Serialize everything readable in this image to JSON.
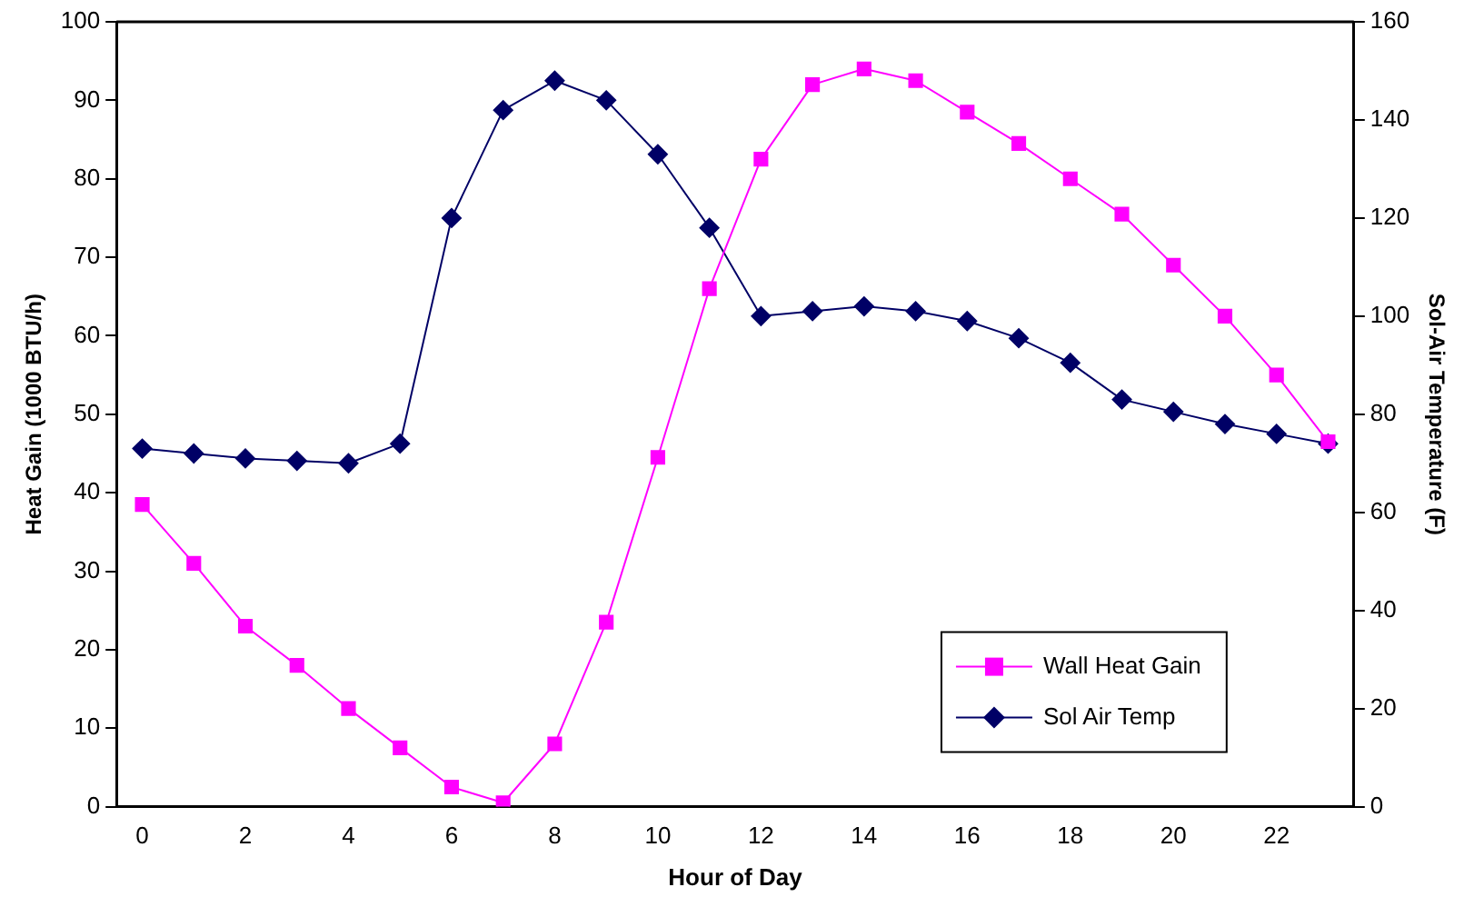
{
  "chart_data": {
    "type": "line",
    "xlabel": "Hour of Day",
    "ylabel": "Heat Gain (1000 BTU/h)",
    "y2label": "Sol-Air Temperature (F)",
    "categories": [
      "0",
      null,
      "2",
      null,
      "4",
      null,
      "6",
      null,
      "8",
      null,
      "10",
      null,
      "12",
      null,
      "14",
      null,
      "16",
      null,
      "18",
      null,
      "20",
      null,
      "22",
      null
    ],
    "series": [
      {
        "name": "Wall Heat Gain",
        "color": "#ff00ff",
        "marker": "square",
        "values": [
          38.5,
          31,
          23,
          18,
          12.5,
          7.5,
          2.5,
          0.5,
          8,
          23.5,
          44.5,
          66,
          82.5,
          92,
          94,
          92.5,
          88.5,
          84.5,
          80,
          75.5,
          69,
          62.5,
          55,
          46.5
        ]
      },
      {
        "name": "Sol Air Temp",
        "color": "#000066",
        "marker": "diamond",
        "axis": "y2",
        "values": [
          73,
          72,
          71,
          70.5,
          70,
          74,
          120,
          142,
          148,
          144,
          133,
          118,
          100,
          101,
          102,
          101,
          99,
          95.5,
          90.5,
          83,
          80.5,
          78,
          76,
          74
        ]
      }
    ],
    "ylim": [
      0,
      100
    ],
    "yticks": [
      0,
      10,
      20,
      30,
      40,
      50,
      60,
      70,
      80,
      90,
      100
    ],
    "y2lim": [
      0,
      160
    ],
    "y2ticks": [
      0,
      20,
      40,
      60,
      80,
      100,
      120,
      140,
      160
    ],
    "grid": false,
    "legend": "bottom right"
  }
}
